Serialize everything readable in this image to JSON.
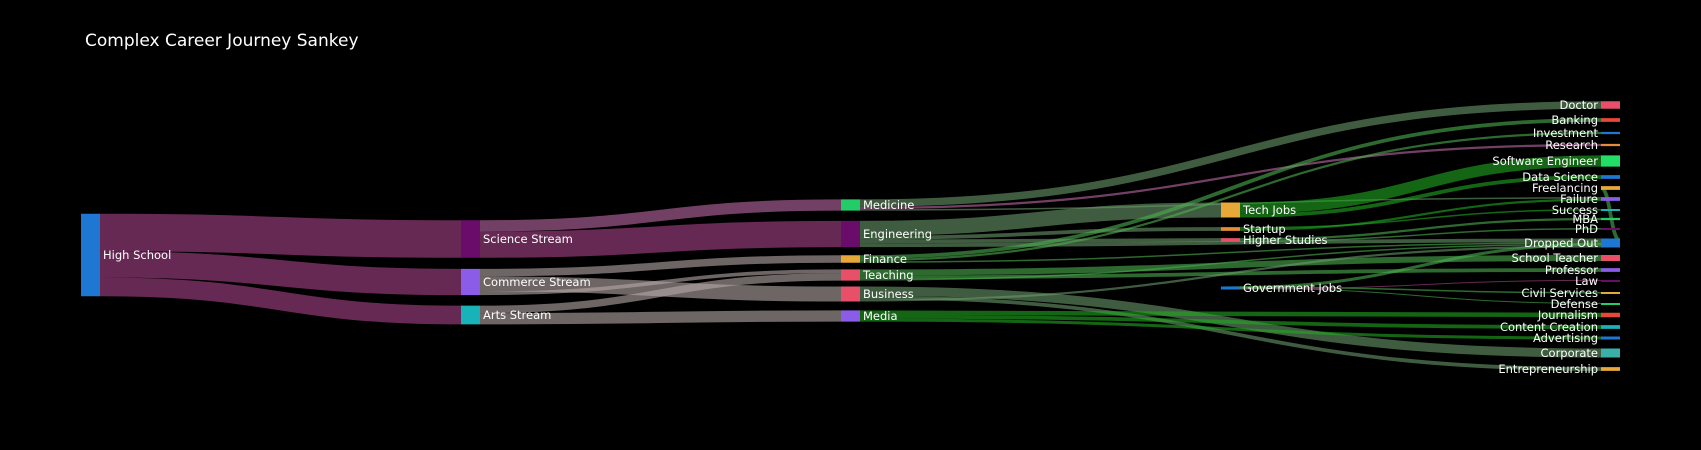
{
  "chart_data": {
    "type": "sankey",
    "title": "Complex Career Journey Sankey",
    "nodes": [
      {
        "name": "High School",
        "color": "#1f77d4"
      },
      {
        "name": "Science Stream",
        "color": "#6a0d6a"
      },
      {
        "name": "Commerce Stream",
        "color": "#8a5ce8"
      },
      {
        "name": "Arts Stream",
        "color": "#17b3b8"
      },
      {
        "name": "Medicine",
        "color": "#22cc66"
      },
      {
        "name": "Engineering",
        "color": "#6a0d6a"
      },
      {
        "name": "Finance",
        "color": "#e8a838"
      },
      {
        "name": "Teaching",
        "color": "#e8506a"
      },
      {
        "name": "Business",
        "color": "#e8506a"
      },
      {
        "name": "Media",
        "color": "#8a5ce8"
      },
      {
        "name": "Tech Jobs",
        "color": "#e8a838"
      },
      {
        "name": "Startup",
        "color": "#e88a38"
      },
      {
        "name": "Higher Studies",
        "color": "#e8506a"
      },
      {
        "name": "Government Jobs",
        "color": "#1f77d4"
      },
      {
        "name": "Doctor",
        "color": "#e8506a"
      },
      {
        "name": "Banking",
        "color": "#e84838"
      },
      {
        "name": "Investment",
        "color": "#1f77d4"
      },
      {
        "name": "Research",
        "color": "#e88a38"
      },
      {
        "name": "Software Engineer",
        "color": "#22dd66"
      },
      {
        "name": "Data Science",
        "color": "#1f77d4"
      },
      {
        "name": "Freelancing",
        "color": "#e8a838"
      },
      {
        "name": "Failure",
        "color": "#8a5ce8"
      },
      {
        "name": "Success",
        "color": "#17b3b8"
      },
      {
        "name": "MBA",
        "color": "#22cc66"
      },
      {
        "name": "PhD",
        "color": "#6a0d6a"
      },
      {
        "name": "Dropped Out",
        "color": "#1f77d4"
      },
      {
        "name": "School Teacher",
        "color": "#e8506a"
      },
      {
        "name": "Professor",
        "color": "#8a5ce8"
      },
      {
        "name": "Law",
        "color": "#6a0d6a"
      },
      {
        "name": "Civil Services",
        "color": "#e8a838"
      },
      {
        "name": "Defense",
        "color": "#22cc66"
      },
      {
        "name": "Journalism",
        "color": "#e84838"
      },
      {
        "name": "Content Creation",
        "color": "#17b3b8"
      },
      {
        "name": "Advertising",
        "color": "#1f77d4"
      },
      {
        "name": "Corporate",
        "color": "#3ab0a8"
      },
      {
        "name": "Entrepreneurship",
        "color": "#e8a838"
      }
    ],
    "links": [
      {
        "source": "High School",
        "target": "Science Stream",
        "value": 50,
        "color": "#a8458a"
      },
      {
        "source": "High School",
        "target": "Commerce Stream",
        "value": 35,
        "color": "#a8458a"
      },
      {
        "source": "High School",
        "target": "Arts Stream",
        "value": 25,
        "color": "#a8458a"
      },
      {
        "source": "Science Stream",
        "target": "Medicine",
        "value": 15,
        "color": "#c06aa8"
      },
      {
        "source": "Science Stream",
        "target": "Engineering",
        "value": 35,
        "color": "#a8458a"
      },
      {
        "source": "Commerce Stream",
        "target": "Finance",
        "value": 10,
        "color": "#b8a8a8"
      },
      {
        "source": "Commerce Stream",
        "target": "Business",
        "value": 20,
        "color": "#b8a8a8"
      },
      {
        "source": "Commerce Stream",
        "target": "Teaching",
        "value": 5,
        "color": "#b8a8a8"
      },
      {
        "source": "Arts Stream",
        "target": "Teaching",
        "value": 10,
        "color": "#b8a8a8"
      },
      {
        "source": "Arts Stream",
        "target": "Media",
        "value": 15,
        "color": "#b8a8a8"
      },
      {
        "source": "Medicine",
        "target": "Doctor",
        "value": 10,
        "color": "#6a9a6a"
      },
      {
        "source": "Medicine",
        "target": "Research",
        "value": 3,
        "color": "#c06aa8"
      },
      {
        "source": "Medicine",
        "target": "Failure",
        "value": 2,
        "color": "#6a9a6a"
      },
      {
        "source": "Engineering",
        "target": "Tech Jobs",
        "value": 20,
        "color": "#6a9a6a"
      },
      {
        "source": "Engineering",
        "target": "Startup",
        "value": 5,
        "color": "#6a9a6a"
      },
      {
        "source": "Engineering",
        "target": "Higher Studies",
        "value": 5,
        "color": "#6a9a6a"
      },
      {
        "source": "Engineering",
        "target": "Dropped Out",
        "value": 5,
        "color": "#6a9a6a"
      },
      {
        "source": "Finance",
        "target": "Banking",
        "value": 5,
        "color": "#4caf50"
      },
      {
        "source": "Finance",
        "target": "Investment",
        "value": 3,
        "color": "#4caf50"
      },
      {
        "source": "Finance",
        "target": "Dropped Out",
        "value": 2,
        "color": "#4caf50"
      },
      {
        "source": "Teaching",
        "target": "School Teacher",
        "value": 8,
        "color": "#4caf50"
      },
      {
        "source": "Teaching",
        "target": "Professor",
        "value": 5,
        "color": "#4caf50"
      },
      {
        "source": "Teaching",
        "target": "Dropped Out",
        "value": 2,
        "color": "#4caf50"
      },
      {
        "source": "Business",
        "target": "Corporate",
        "value": 12,
        "color": "#6a9a6a"
      },
      {
        "source": "Business",
        "target": "Entrepreneurship",
        "value": 5,
        "color": "#6a9a6a"
      },
      {
        "source": "Business",
        "target": "Dropped Out",
        "value": 3,
        "color": "#6a9a6a"
      },
      {
        "source": "Media",
        "target": "Journalism",
        "value": 6,
        "color": "#22aa22"
      },
      {
        "source": "Media",
        "target": "Content Creation",
        "value": 5,
        "color": "#22aa22"
      },
      {
        "source": "Media",
        "target": "Advertising",
        "value": 4,
        "color": "#22aa22"
      },
      {
        "source": "Tech Jobs",
        "target": "Software Engineer",
        "value": 15,
        "color": "#22aa22"
      },
      {
        "source": "Tech Jobs",
        "target": "Data Science",
        "value": 5,
        "color": "#22aa22"
      },
      {
        "source": "Startup",
        "target": "Success",
        "value": 2,
        "color": "#22aa22"
      },
      {
        "source": "Startup",
        "target": "Failure",
        "value": 3,
        "color": "#22aa22"
      },
      {
        "source": "Higher Studies",
        "target": "MBA",
        "value": 3,
        "color": "#4caf50"
      },
      {
        "source": "Higher Studies",
        "target": "PhD",
        "value": 2,
        "color": "#4caf50"
      },
      {
        "source": "Dropped Out",
        "target": "Freelancing",
        "value": 5,
        "color": "#4caf50"
      },
      {
        "source": "Dropped Out",
        "target": "Government Jobs",
        "value": 4,
        "color": "#4caf50"
      },
      {
        "source": "Government Jobs",
        "target": "Civil Services",
        "value": 2,
        "color": "#4caf50"
      },
      {
        "source": "Government Jobs",
        "target": "Defense",
        "value": 1,
        "color": "#4caf50"
      },
      {
        "source": "Government Jobs",
        "target": "Law",
        "value": 1,
        "color": "#a8458a"
      }
    ]
  }
}
